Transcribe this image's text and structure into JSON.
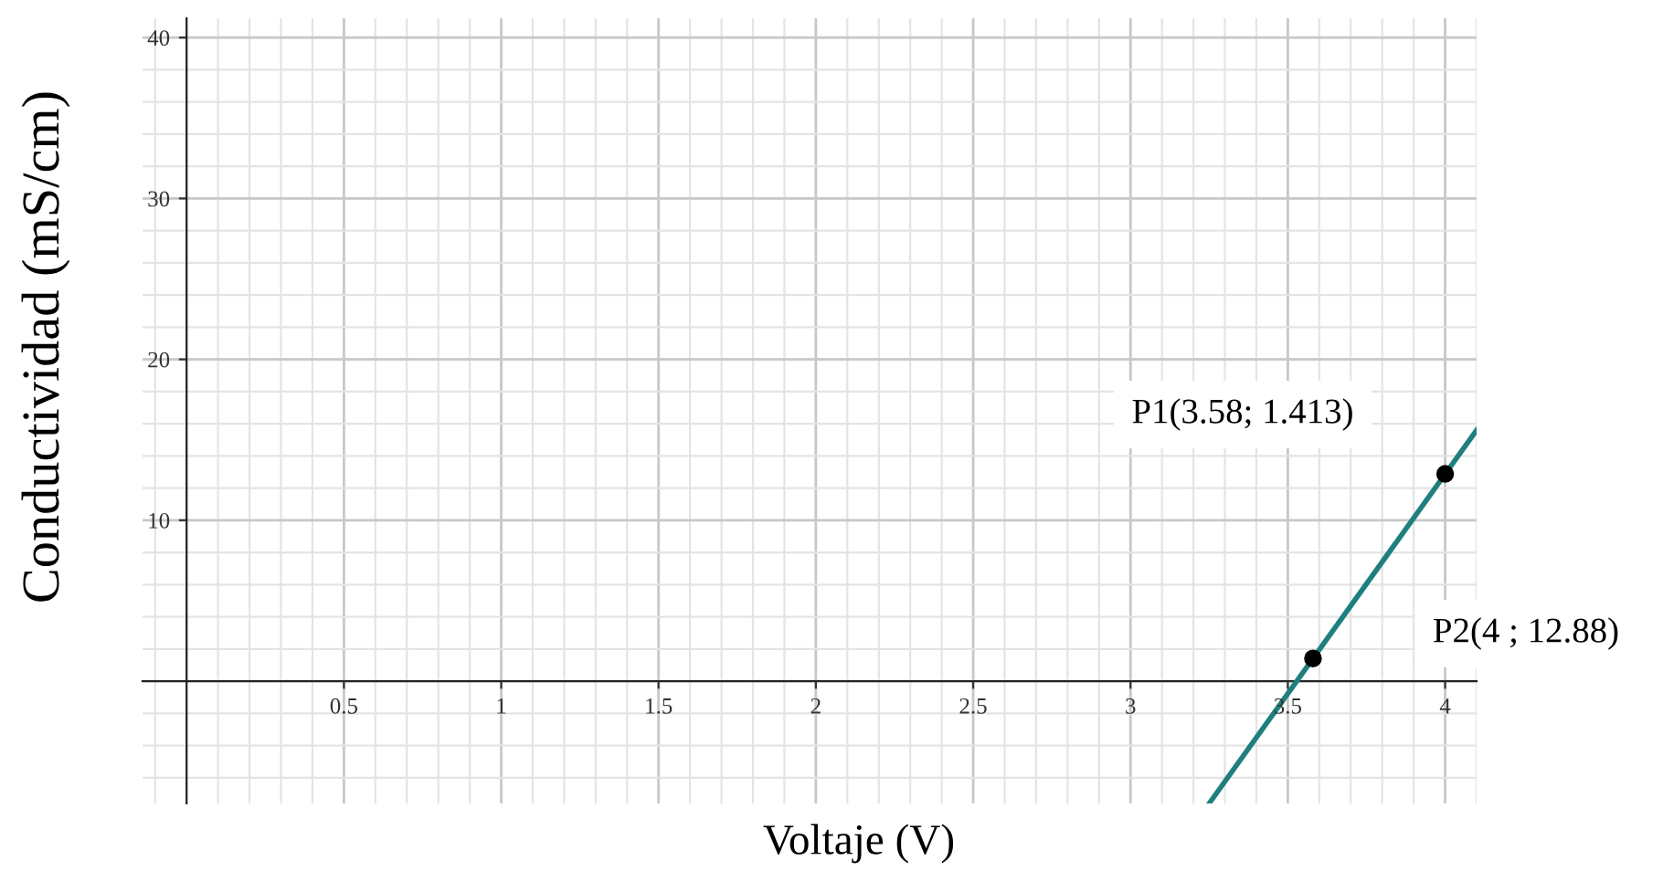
{
  "chart_data": {
    "type": "scatter",
    "xlabel": "Voltaje (V)",
    "ylabel": "Conductividad (mS/cm)",
    "series": [
      {
        "type": "line",
        "color": "#1f7f7f",
        "marker": "none",
        "x": [
          3.25,
          4.1
        ],
        "values": [
          -7.6,
          15.6
        ]
      },
      {
        "color": "#000000",
        "marker": "circle",
        "x": [
          3.58,
          4
        ],
        "values": [
          1.413,
          12.88
        ]
      }
    ],
    "annotations": [
      "P1(3.58; 1.413)",
      "P2(4 ; 12.88)"
    ],
    "xlim": [
      -0.14,
      4.1
    ],
    "ylim": [
      -7.6,
      41.2
    ],
    "xticks": [
      0.5,
      1,
      1.5,
      2,
      2.5,
      3,
      3.5,
      4
    ],
    "yticks": [
      10,
      20,
      30,
      40
    ],
    "grid": true
  }
}
